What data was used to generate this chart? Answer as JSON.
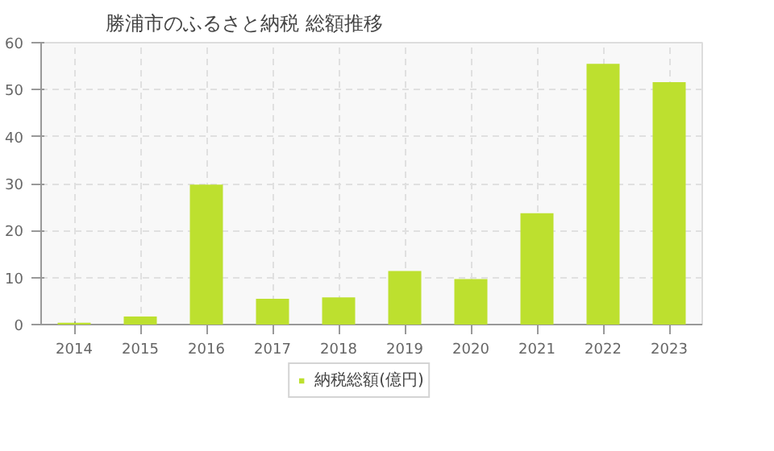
{
  "chart_data": {
    "type": "bar",
    "title": "勝浦市のふるさと納税 総額推移",
    "categories": [
      "2014",
      "2015",
      "2016",
      "2017",
      "2018",
      "2019",
      "2020",
      "2021",
      "2022",
      "2023"
    ],
    "series": [
      {
        "name": "納税総額(億円)",
        "color": "#bde02f",
        "values": [
          0.4,
          1.7,
          29.8,
          5.5,
          5.8,
          11.4,
          9.7,
          23.7,
          55.5,
          51.6
        ]
      }
    ],
    "ylim": [
      0,
      60
    ],
    "yticks": [
      0,
      10,
      20,
      30,
      40,
      50,
      60
    ],
    "grid": true,
    "legend": "bottom"
  }
}
